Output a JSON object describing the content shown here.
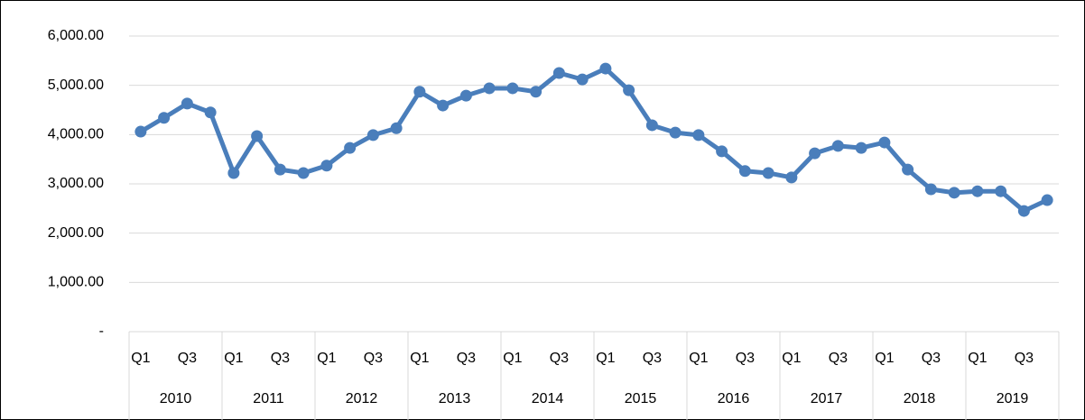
{
  "chart_data": {
    "type": "line",
    "categories": [
      "Q1",
      null,
      "Q3",
      null,
      "Q1",
      null,
      "Q3",
      null,
      "Q1",
      null,
      "Q3",
      null,
      "Q1",
      null,
      "Q3",
      null,
      "Q1",
      null,
      "Q3",
      null,
      "Q1",
      null,
      "Q3",
      null,
      "Q1",
      null,
      "Q3",
      null,
      "Q1",
      null,
      "Q3",
      null,
      "Q1",
      null,
      "Q3",
      null,
      "Q1",
      null,
      "Q3",
      null
    ],
    "category_groups": [
      "2010",
      "2011",
      "2012",
      "2013",
      "2014",
      "2015",
      "2016",
      "2017",
      "2018",
      "2019"
    ],
    "series": [
      {
        "color": "#4a7ebb",
        "values": [
          4060,
          4340,
          4630,
          4450,
          3220,
          3970,
          3290,
          3220,
          3370,
          3730,
          3990,
          4130,
          4870,
          4590,
          4790,
          4940,
          4940,
          4870,
          5250,
          5120,
          5340,
          4900,
          4190,
          4040,
          3990,
          3660,
          3260,
          3220,
          3130,
          3620,
          3770,
          3730,
          3840,
          3290,
          2890,
          2820,
          2850,
          2850,
          2450,
          2670
        ]
      }
    ],
    "ylim": [
      0,
      6000
    ],
    "yticks": [
      {
        "value": 0,
        "label": "-"
      },
      {
        "value": 1000,
        "label": "1,000.00"
      },
      {
        "value": 2000,
        "label": "2,000.00"
      },
      {
        "value": 3000,
        "label": "3,000.00"
      },
      {
        "value": 4000,
        "label": "4,000.00"
      },
      {
        "value": 5000,
        "label": "5,000.00"
      },
      {
        "value": 6000,
        "label": "6,000.00"
      }
    ],
    "grid": true
  }
}
